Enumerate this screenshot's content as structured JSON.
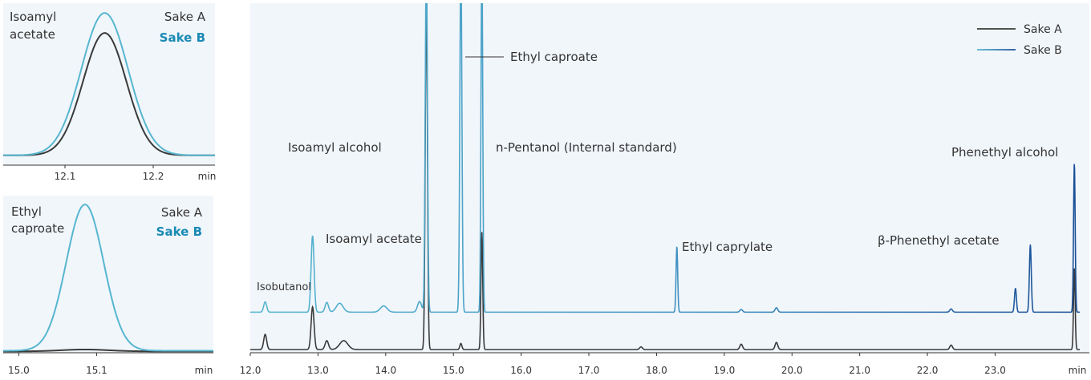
{
  "colors": {
    "panel_bg": "#f1f6fb",
    "sake_a": "#3a3a3a",
    "sake_b_light": "#57b6cf",
    "sake_b_dark": "#1a4f96",
    "sake_b_text": "#1a8ab4",
    "axis": "#333333"
  },
  "chart_data": [
    {
      "type": "line",
      "id": "inset-isoamyl-acetate",
      "title": "Isoamyl\nacetate",
      "xlabel": "min",
      "xlim": [
        12.03,
        12.27
      ],
      "ylim": [
        0,
        1.22
      ],
      "x_ticks": [
        12.1,
        12.2
      ],
      "tick_labels": [
        "12.1",
        "12.2"
      ],
      "legend": [
        "Sake A",
        "Sake B"
      ],
      "legend_placement": "top-right",
      "series": [
        {
          "name": "Sake A",
          "peak_rt": 12.145,
          "height": 0.98,
          "sigma": 0.0245,
          "baseline": 0.04
        },
        {
          "name": "Sake B",
          "peak_rt": 12.145,
          "height": 1.14,
          "sigma": 0.0265,
          "baseline": 0.04
        }
      ]
    },
    {
      "type": "line",
      "id": "inset-ethyl-caproate",
      "title": "Ethyl\ncaproate",
      "xlabel": "min",
      "xlim": [
        14.98,
        15.25
      ],
      "ylim": [
        0,
        1.25
      ],
      "x_ticks": [
        15.0,
        15.1
      ],
      "tick_labels": [
        "15.0",
        "15.1"
      ],
      "legend": [
        "Sake A",
        "Sake B"
      ],
      "legend_placement": "top-right",
      "series": [
        {
          "name": "Sake A",
          "peak_rt": 15.085,
          "height": 0.015,
          "sigma": 0.03,
          "baseline": 0.005
        },
        {
          "name": "Sake B",
          "peak_rt": 15.085,
          "height": 1.2,
          "sigma": 0.024,
          "baseline": 0.01
        }
      ]
    },
    {
      "type": "line",
      "id": "main-chromatogram",
      "xlabel": "min",
      "xlim": [
        12.0,
        24.25
      ],
      "x_ticks": [
        12.0,
        13.0,
        14.0,
        15.0,
        16.0,
        17.0,
        18.0,
        19.0,
        20.0,
        21.0,
        22.0,
        23.0
      ],
      "tick_labels": [
        "12.0",
        "13.0",
        "14.0",
        "15.0",
        "16.0",
        "17.0",
        "18.0",
        "19.0",
        "20.0",
        "21.0",
        "22.0",
        "23.0"
      ],
      "legend": [
        "Sake A",
        "Sake B"
      ],
      "legend_placement": "top-right",
      "annotations": [
        {
          "text": "Isobutanol",
          "rt": 12.22
        },
        {
          "text": "Isoamyl acetate",
          "rt": 12.93
        },
        {
          "text": "Isoamyl alcohol",
          "rt": 14.6
        },
        {
          "text": "Ethyl caproate",
          "rt": 15.1
        },
        {
          "text": "n-Pentanol (Internal standard)",
          "rt": 15.42
        },
        {
          "text": "Ethyl caprylate",
          "rt": 18.3
        },
        {
          "text": "β-Phenethyl acetate",
          "rt": 23.3
        },
        {
          "text": "Phenethyl alcohol",
          "rt": 24.17
        }
      ],
      "series": [
        {
          "name": "Sake A",
          "baseline": 0,
          "peaks": [
            {
              "rt": 12.22,
              "h": 0.085,
              "w": 0.022
            },
            {
              "rt": 12.92,
              "h": 0.24,
              "w": 0.022
            },
            {
              "rt": 13.13,
              "h": 0.05,
              "w": 0.025
            },
            {
              "rt": 13.38,
              "h": 0.05,
              "w": 0.06
            },
            {
              "rt": 14.6,
              "h": 2.0,
              "w": 0.016
            },
            {
              "rt": 15.11,
              "h": 0.034,
              "w": 0.015
            },
            {
              "rt": 15.42,
              "h": 0.66,
              "w": 0.013
            },
            {
              "rt": 17.77,
              "h": 0.015,
              "w": 0.02
            },
            {
              "rt": 19.25,
              "h": 0.03,
              "w": 0.02
            },
            {
              "rt": 19.77,
              "h": 0.04,
              "w": 0.02
            },
            {
              "rt": 22.35,
              "h": 0.025,
              "w": 0.02
            },
            {
              "rt": 24.17,
              "h": 0.46,
              "w": 0.012
            }
          ]
        },
        {
          "name": "Sake B",
          "baseline": 0.21,
          "peaks": [
            {
              "rt": 12.22,
              "h": 0.058,
              "w": 0.022
            },
            {
              "rt": 12.92,
              "h": 0.43,
              "w": 0.022
            },
            {
              "rt": 13.13,
              "h": 0.055,
              "w": 0.025
            },
            {
              "rt": 13.32,
              "h": 0.05,
              "w": 0.05
            },
            {
              "rt": 13.97,
              "h": 0.035,
              "w": 0.05
            },
            {
              "rt": 14.5,
              "h": 0.06,
              "w": 0.03
            },
            {
              "rt": 14.6,
              "h": 2.0,
              "w": 0.016
            },
            {
              "rt": 15.11,
              "h": 2.0,
              "w": 0.015
            },
            {
              "rt": 15.42,
              "h": 2.0,
              "w": 0.013
            },
            {
              "rt": 18.3,
              "h": 0.37,
              "w": 0.012
            },
            {
              "rt": 19.25,
              "h": 0.015,
              "w": 0.02
            },
            {
              "rt": 19.77,
              "h": 0.025,
              "w": 0.02
            },
            {
              "rt": 22.35,
              "h": 0.018,
              "w": 0.02
            },
            {
              "rt": 23.3,
              "h": 0.135,
              "w": 0.014
            },
            {
              "rt": 23.52,
              "h": 0.38,
              "w": 0.014
            },
            {
              "rt": 24.17,
              "h": 0.84,
              "w": 0.012
            }
          ]
        }
      ]
    }
  ]
}
